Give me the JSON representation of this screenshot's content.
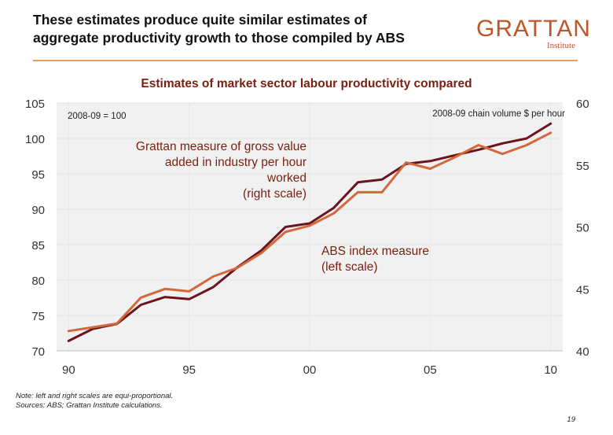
{
  "slide": {
    "headline_line1": "These estimates produce quite similar estimates of",
    "headline_line2": "aggregate productivity growth to those compiled by ABS",
    "logo_main": "GRATTAN",
    "logo_sub": "Institute",
    "note_line1": "Note: left and right scales are equi-proportional.",
    "note_line2": "Sources: ABS; Grattan Institute calculations.",
    "page_number": "19"
  },
  "colors": {
    "abs_series": "#6b1420",
    "grattan_series": "#d2693b",
    "annotation_text": "#7a1f10",
    "grid": "#e3e3e3",
    "plot_background": "#f1f1f1"
  },
  "chart_data": {
    "type": "line",
    "title": "Estimates of market sector labour productivity compared",
    "x_tick_labels": [
      "90",
      "95",
      "00",
      "05",
      "10"
    ],
    "x_ticks": [
      1990,
      1995,
      2000,
      2005,
      2010
    ],
    "xlim": [
      1989.5,
      2010.5
    ],
    "left_axis": {
      "label": "2008-09 = 100",
      "ylim": [
        70,
        105
      ],
      "ticks": [
        70,
        75,
        80,
        85,
        90,
        95,
        100,
        105
      ]
    },
    "right_axis": {
      "label": "2008-09 chain volume $ per hour",
      "ylim": [
        40,
        60
      ],
      "ticks": [
        40,
        45,
        50,
        55,
        60
      ]
    },
    "grid": true,
    "series": [
      {
        "name": "ABS index measure (left scale)",
        "label_lines": [
          "ABS index measure",
          "(left scale)"
        ],
        "axis": "left",
        "x": [
          1990,
          1991,
          1992,
          1993,
          1994,
          1995,
          1996,
          1997,
          1998,
          1999,
          2000,
          2001,
          2002,
          2003,
          2004,
          2005,
          2006,
          2007,
          2008,
          2009,
          2010
        ],
        "y": [
          71.4,
          73.1,
          73.8,
          76.5,
          77.6,
          77.3,
          79.0,
          81.8,
          84.2,
          87.5,
          88.0,
          90.2,
          93.8,
          94.2,
          96.4,
          96.8,
          97.6,
          98.4,
          99.3,
          100.0,
          102.1
        ]
      },
      {
        "name": "Grattan measure of gross value added in industry per hour worked (right scale)",
        "label_lines": [
          "Grattan measure of gross value",
          "added in industry per hour",
          "worked",
          "(right scale)"
        ],
        "axis": "right",
        "x": [
          1990,
          1991,
          1992,
          1993,
          1994,
          1995,
          1996,
          1997,
          1998,
          1999,
          2000,
          2001,
          2002,
          2003,
          2004,
          2005,
          2006,
          2007,
          2008,
          2009,
          2010
        ],
        "y": [
          41.6,
          41.9,
          42.2,
          44.3,
          45.0,
          44.8,
          46.0,
          46.7,
          47.9,
          49.6,
          50.1,
          51.1,
          52.8,
          52.8,
          55.2,
          54.7,
          55.6,
          56.6,
          55.9,
          56.6,
          57.6
        ]
      }
    ]
  }
}
